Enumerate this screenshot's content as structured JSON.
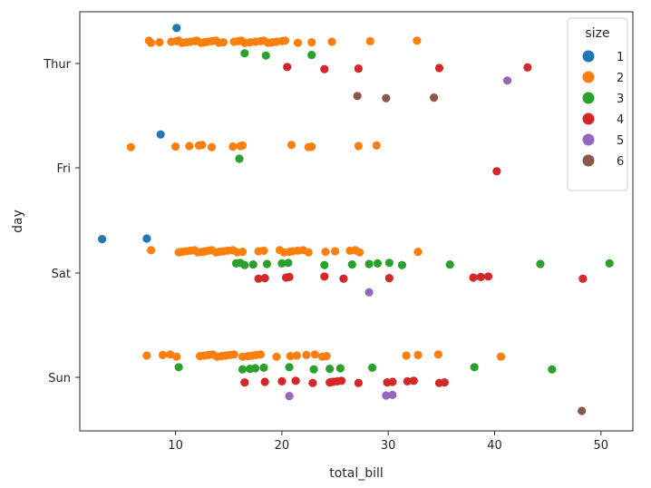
{
  "chart_data": {
    "type": "scatter",
    "title": "",
    "xlabel": "total_bill",
    "ylabel": "day",
    "xlim": [
      1,
      53
    ],
    "xticks": [
      10,
      20,
      30,
      40,
      50
    ],
    "categories": [
      "Thur",
      "Fri",
      "Sat",
      "Sun"
    ],
    "grid": false,
    "legend": {
      "title": "size",
      "placement": "top-right",
      "entries": [
        {
          "label": "1",
          "color": "#1f77b4"
        },
        {
          "label": "2",
          "color": "#ff7f0e"
        },
        {
          "label": "3",
          "color": "#2ca02c"
        },
        {
          "label": "4",
          "color": "#d62728"
        },
        {
          "label": "5",
          "color": "#9467bd"
        },
        {
          "label": "6",
          "color": "#8c564b"
        }
      ]
    },
    "series": [
      {
        "name": "1",
        "points": [
          {
            "day": "Thur",
            "x": 10.1
          },
          {
            "day": "Fri",
            "x": 8.6
          },
          {
            "day": "Sat",
            "x": 3.1
          },
          {
            "day": "Sat",
            "x": 7.3
          }
        ]
      },
      {
        "name": "2",
        "points": [
          {
            "day": "Thur",
            "x": 7.5
          },
          {
            "day": "Thur",
            "x": 7.7
          },
          {
            "day": "Thur",
            "x": 8.5
          },
          {
            "day": "Thur",
            "x": 9.6
          },
          {
            "day": "Thur",
            "x": 10.1
          },
          {
            "day": "Thur",
            "x": 10.3
          },
          {
            "day": "Thur",
            "x": 10.6
          },
          {
            "day": "Thur",
            "x": 11.0
          },
          {
            "day": "Thur",
            "x": 11.4
          },
          {
            "day": "Thur",
            "x": 11.8
          },
          {
            "day": "Thur",
            "x": 12.0
          },
          {
            "day": "Thur",
            "x": 12.4
          },
          {
            "day": "Thur",
            "x": 12.7
          },
          {
            "day": "Thur",
            "x": 13.0
          },
          {
            "day": "Thur",
            "x": 13.4
          },
          {
            "day": "Thur",
            "x": 13.8
          },
          {
            "day": "Thur",
            "x": 14.1
          },
          {
            "day": "Thur",
            "x": 14.5
          },
          {
            "day": "Thur",
            "x": 15.5
          },
          {
            "day": "Thur",
            "x": 15.9
          },
          {
            "day": "Thur",
            "x": 16.2
          },
          {
            "day": "Thur",
            "x": 16.5
          },
          {
            "day": "Thur",
            "x": 17.0
          },
          {
            "day": "Thur",
            "x": 17.5
          },
          {
            "day": "Thur",
            "x": 18.0
          },
          {
            "day": "Thur",
            "x": 18.3
          },
          {
            "day": "Thur",
            "x": 18.7
          },
          {
            "day": "Thur",
            "x": 19.1
          },
          {
            "day": "Thur",
            "x": 19.5
          },
          {
            "day": "Thur",
            "x": 20.0
          },
          {
            "day": "Thur",
            "x": 20.3
          },
          {
            "day": "Thur",
            "x": 21.5
          },
          {
            "day": "Thur",
            "x": 22.8
          },
          {
            "day": "Thur",
            "x": 24.7
          },
          {
            "day": "Thur",
            "x": 28.3
          },
          {
            "day": "Thur",
            "x": 32.7
          },
          {
            "day": "Fri",
            "x": 5.8
          },
          {
            "day": "Fri",
            "x": 10.0
          },
          {
            "day": "Fri",
            "x": 11.3
          },
          {
            "day": "Fri",
            "x": 12.2
          },
          {
            "day": "Fri",
            "x": 12.5
          },
          {
            "day": "Fri",
            "x": 13.4
          },
          {
            "day": "Fri",
            "x": 15.4
          },
          {
            "day": "Fri",
            "x": 16.1
          },
          {
            "day": "Fri",
            "x": 16.3
          },
          {
            "day": "Fri",
            "x": 20.9
          },
          {
            "day": "Fri",
            "x": 22.5
          },
          {
            "day": "Fri",
            "x": 22.8
          },
          {
            "day": "Fri",
            "x": 27.2
          },
          {
            "day": "Fri",
            "x": 28.9
          },
          {
            "day": "Sat",
            "x": 7.7
          },
          {
            "day": "Sat",
            "x": 10.3
          },
          {
            "day": "Sat",
            "x": 10.6
          },
          {
            "day": "Sat",
            "x": 11.0
          },
          {
            "day": "Sat",
            "x": 11.4
          },
          {
            "day": "Sat",
            "x": 11.8
          },
          {
            "day": "Sat",
            "x": 12.1
          },
          {
            "day": "Sat",
            "x": 12.5
          },
          {
            "day": "Sat",
            "x": 12.8
          },
          {
            "day": "Sat",
            "x": 13.1
          },
          {
            "day": "Sat",
            "x": 13.4
          },
          {
            "day": "Sat",
            "x": 13.8
          },
          {
            "day": "Sat",
            "x": 14.1
          },
          {
            "day": "Sat",
            "x": 14.5
          },
          {
            "day": "Sat",
            "x": 14.9
          },
          {
            "day": "Sat",
            "x": 15.4
          },
          {
            "day": "Sat",
            "x": 15.8
          },
          {
            "day": "Sat",
            "x": 16.3
          },
          {
            "day": "Sat",
            "x": 17.8
          },
          {
            "day": "Sat",
            "x": 18.3
          },
          {
            "day": "Sat",
            "x": 19.8
          },
          {
            "day": "Sat",
            "x": 20.2
          },
          {
            "day": "Sat",
            "x": 20.7
          },
          {
            "day": "Sat",
            "x": 21.0
          },
          {
            "day": "Sat",
            "x": 21.5
          },
          {
            "day": "Sat",
            "x": 22.0
          },
          {
            "day": "Sat",
            "x": 22.5
          },
          {
            "day": "Sat",
            "x": 24.1
          },
          {
            "day": "Sat",
            "x": 25.0
          },
          {
            "day": "Sat",
            "x": 26.4
          },
          {
            "day": "Sat",
            "x": 26.9
          },
          {
            "day": "Sat",
            "x": 27.3
          },
          {
            "day": "Sat",
            "x": 32.8
          },
          {
            "day": "Sun",
            "x": 7.3
          },
          {
            "day": "Sun",
            "x": 8.8
          },
          {
            "day": "Sun",
            "x": 9.5
          },
          {
            "day": "Sun",
            "x": 10.1
          },
          {
            "day": "Sun",
            "x": 12.3
          },
          {
            "day": "Sun",
            "x": 12.7
          },
          {
            "day": "Sun",
            "x": 13.1
          },
          {
            "day": "Sun",
            "x": 13.5
          },
          {
            "day": "Sun",
            "x": 13.9
          },
          {
            "day": "Sun",
            "x": 14.3
          },
          {
            "day": "Sun",
            "x": 14.7
          },
          {
            "day": "Sun",
            "x": 15.1
          },
          {
            "day": "Sun",
            "x": 15.5
          },
          {
            "day": "Sun",
            "x": 16.3
          },
          {
            "day": "Sun",
            "x": 16.8
          },
          {
            "day": "Sun",
            "x": 17.2
          },
          {
            "day": "Sun",
            "x": 17.6
          },
          {
            "day": "Sun",
            "x": 18.0
          },
          {
            "day": "Sun",
            "x": 19.5
          },
          {
            "day": "Sun",
            "x": 20.8
          },
          {
            "day": "Sun",
            "x": 21.4
          },
          {
            "day": "Sun",
            "x": 22.3
          },
          {
            "day": "Sun",
            "x": 23.1
          },
          {
            "day": "Sun",
            "x": 23.8
          },
          {
            "day": "Sun",
            "x": 24.2
          },
          {
            "day": "Sun",
            "x": 31.7
          },
          {
            "day": "Sun",
            "x": 32.8
          },
          {
            "day": "Sun",
            "x": 34.7
          },
          {
            "day": "Sun",
            "x": 40.6
          }
        ]
      },
      {
        "name": "3",
        "points": [
          {
            "day": "Thur",
            "x": 16.5
          },
          {
            "day": "Thur",
            "x": 18.5
          },
          {
            "day": "Thur",
            "x": 22.8
          },
          {
            "day": "Fri",
            "x": 16.0
          },
          {
            "day": "Sat",
            "x": 15.7
          },
          {
            "day": "Sat",
            "x": 16.1
          },
          {
            "day": "Sat",
            "x": 16.5
          },
          {
            "day": "Sat",
            "x": 17.3
          },
          {
            "day": "Sat",
            "x": 18.6
          },
          {
            "day": "Sat",
            "x": 20.0
          },
          {
            "day": "Sat",
            "x": 20.6
          },
          {
            "day": "Sat",
            "x": 24.0
          },
          {
            "day": "Sat",
            "x": 26.6
          },
          {
            "day": "Sat",
            "x": 28.2
          },
          {
            "day": "Sat",
            "x": 29.0
          },
          {
            "day": "Sat",
            "x": 30.1
          },
          {
            "day": "Sat",
            "x": 31.3
          },
          {
            "day": "Sat",
            "x": 35.8
          },
          {
            "day": "Sat",
            "x": 44.3
          },
          {
            "day": "Sat",
            "x": 50.8
          },
          {
            "day": "Sun",
            "x": 10.3
          },
          {
            "day": "Sun",
            "x": 16.3
          },
          {
            "day": "Sun",
            "x": 17.0
          },
          {
            "day": "Sun",
            "x": 17.5
          },
          {
            "day": "Sun",
            "x": 18.3
          },
          {
            "day": "Sun",
            "x": 20.7
          },
          {
            "day": "Sun",
            "x": 23.0
          },
          {
            "day": "Sun",
            "x": 24.5
          },
          {
            "day": "Sun",
            "x": 25.5
          },
          {
            "day": "Sun",
            "x": 28.5
          },
          {
            "day": "Sun",
            "x": 38.1
          },
          {
            "day": "Sun",
            "x": 45.4
          }
        ]
      },
      {
        "name": "4",
        "points": [
          {
            "day": "Thur",
            "x": 20.5
          },
          {
            "day": "Thur",
            "x": 24.0
          },
          {
            "day": "Thur",
            "x": 27.2
          },
          {
            "day": "Thur",
            "x": 34.8
          },
          {
            "day": "Thur",
            "x": 43.1
          },
          {
            "day": "Fri",
            "x": 40.2
          },
          {
            "day": "Sat",
            "x": 17.8
          },
          {
            "day": "Sat",
            "x": 18.4
          },
          {
            "day": "Sat",
            "x": 20.4
          },
          {
            "day": "Sat",
            "x": 20.7
          },
          {
            "day": "Sat",
            "x": 24.0
          },
          {
            "day": "Sat",
            "x": 25.8
          },
          {
            "day": "Sat",
            "x": 30.1
          },
          {
            "day": "Sat",
            "x": 38.0
          },
          {
            "day": "Sat",
            "x": 38.7
          },
          {
            "day": "Sat",
            "x": 39.4
          },
          {
            "day": "Sat",
            "x": 48.3
          },
          {
            "day": "Sun",
            "x": 16.5
          },
          {
            "day": "Sun",
            "x": 18.4
          },
          {
            "day": "Sun",
            "x": 20.0
          },
          {
            "day": "Sun",
            "x": 21.3
          },
          {
            "day": "Sun",
            "x": 22.9
          },
          {
            "day": "Sun",
            "x": 24.5
          },
          {
            "day": "Sun",
            "x": 24.8
          },
          {
            "day": "Sun",
            "x": 25.2
          },
          {
            "day": "Sun",
            "x": 25.6
          },
          {
            "day": "Sun",
            "x": 27.2
          },
          {
            "day": "Sun",
            "x": 29.9
          },
          {
            "day": "Sun",
            "x": 30.4
          },
          {
            "day": "Sun",
            "x": 31.8
          },
          {
            "day": "Sun",
            "x": 32.4
          },
          {
            "day": "Sun",
            "x": 34.8
          },
          {
            "day": "Sun",
            "x": 35.3
          }
        ]
      },
      {
        "name": "5",
        "points": [
          {
            "day": "Thur",
            "x": 41.2
          },
          {
            "day": "Sat",
            "x": 28.2
          },
          {
            "day": "Sun",
            "x": 20.7
          },
          {
            "day": "Sun",
            "x": 29.8
          },
          {
            "day": "Sun",
            "x": 30.4
          }
        ]
      },
      {
        "name": "6",
        "points": [
          {
            "day": "Thur",
            "x": 27.1
          },
          {
            "day": "Thur",
            "x": 29.8
          },
          {
            "day": "Thur",
            "x": 34.3
          },
          {
            "day": "Sun",
            "x": 48.2
          }
        ]
      }
    ]
  }
}
